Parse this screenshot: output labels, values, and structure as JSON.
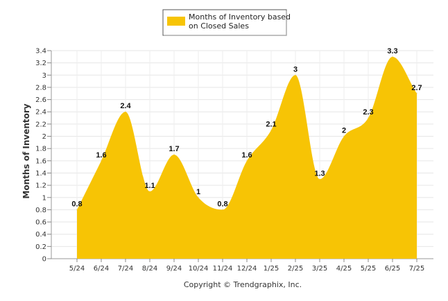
{
  "chart_data": {
    "type": "area",
    "categories": [
      "5/24",
      "6/24",
      "7/24",
      "8/24",
      "9/24",
      "10/24",
      "11/24",
      "12/24",
      "1/25",
      "2/25",
      "3/25",
      "4/25",
      "5/25",
      "6/25",
      "7/25"
    ],
    "series": [
      {
        "name": "Months of Inventory based on Closed Sales",
        "values": [
          0.8,
          1.6,
          2.4,
          1.1,
          1.7,
          1,
          0.8,
          1.6,
          2.1,
          3,
          1.3,
          2,
          2.3,
          3.3,
          2.7
        ]
      }
    ],
    "data_labels": [
      "0.8",
      "1.6",
      "2.4",
      "1.1",
      "1.7",
      "1",
      "0.8",
      "1.6",
      "2.1",
      "3",
      "1.3",
      "2",
      "2.3",
      "3.3",
      "2.7"
    ],
    "ylabel": "Months of Inventory",
    "xlabel": "",
    "ylim": [
      0,
      3.4
    ],
    "yticks": [
      "0",
      "0.2",
      "0.4",
      "0.6",
      "0.8",
      "1",
      "1.2",
      "1.4",
      "1.6",
      "1.8",
      "2",
      "2.2",
      "2.4",
      "2.6",
      "2.8",
      "3",
      "3.2",
      "3.4"
    ],
    "grid": true,
    "legend_position": "top-center",
    "legend_lines": [
      "Months of Inventory based",
      "on Closed Sales"
    ],
    "area_color": "#F7C405",
    "copyright": "Copyright © Trendgraphix, Inc."
  }
}
